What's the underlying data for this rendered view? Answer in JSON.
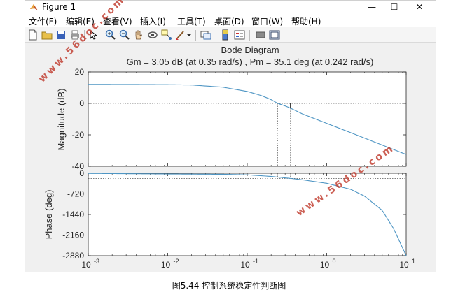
{
  "window": {
    "title": "Figure 1",
    "controls": {
      "minimize": "—",
      "maximize": "☐",
      "close": "✕"
    }
  },
  "menu": [
    "文件(F)",
    "编辑(E)",
    "查看(V)",
    "插入(I)",
    "工具(T)",
    "桌面(D)",
    "窗口(W)",
    "帮助(H)"
  ],
  "toolbar": {
    "icons": [
      "new-figure-icon",
      "open-file-icon",
      "save-icon",
      "print-icon",
      "pointer-icon",
      "zoom-in-icon",
      "zoom-out-icon",
      "pan-icon",
      "rotate-3d-icon",
      "data-cursor-icon",
      "brush-icon",
      "brush-dropdown-icon",
      "link-plot-icon",
      "colorbar-icon",
      "legend-icon",
      "hide-plot-tools-icon",
      "show-plot-tools-icon"
    ]
  },
  "chart_data": {
    "type": "line",
    "title": "Bode Diagram",
    "subtitle": "Gm = 3.05 dB (at 0.35 rad/s) ,  Pm = 35.1 deg (at 0.242 rad/s)",
    "xscale": "log",
    "xlim": [
      0.001,
      10
    ],
    "x_ticks": [
      0.001,
      0.01,
      0.1,
      1,
      10
    ],
    "x_tick_labels": [
      {
        "base": "10",
        "exp": "-3"
      },
      {
        "base": "10",
        "exp": "-2"
      },
      {
        "base": "10",
        "exp": "-1"
      },
      {
        "base": "10",
        "exp": "0"
      },
      {
        "base": "10",
        "exp": "1"
      }
    ],
    "line_color": "#4f96c4",
    "magnitude": {
      "ylabel": "Magnitude (dB)",
      "ylim": [
        -40,
        20
      ],
      "y_ticks": [
        20,
        0,
        -20,
        -40
      ],
      "y_tick_labels": [
        "20",
        "0",
        "-20",
        "-40"
      ],
      "x": [
        0.001,
        0.005,
        0.01,
        0.02,
        0.05,
        0.1,
        0.15,
        0.2,
        0.242,
        0.3,
        0.35,
        0.5,
        1,
        2,
        5,
        10
      ],
      "y": [
        12.1,
        12.0,
        11.9,
        11.7,
        10.3,
        7.6,
        5.0,
        2.4,
        0.0,
        -1.6,
        -3.05,
        -6.8,
        -12.7,
        -18.6,
        -26.5,
        -32.5
      ]
    },
    "phase": {
      "ylabel": "Phase (deg)",
      "ylim": [
        -2880,
        0
      ],
      "y_ticks": [
        0,
        -720,
        -1440,
        -2160,
        -2880
      ],
      "y_tick_labels": [
        "0",
        "-720",
        "-1440",
        "-2160",
        "-2880"
      ],
      "x": [
        0.001,
        0.01,
        0.05,
        0.1,
        0.2,
        0.35,
        0.5,
        1,
        2,
        3,
        5,
        7,
        10
      ],
      "y": [
        -6,
        -25,
        -36,
        -54,
        -110,
        -180,
        -230,
        -350,
        -560,
        -800,
        -1300,
        -1950,
        -2880
      ]
    },
    "margin_markers": {
      "gain_crossover": 0.242,
      "phase_crossover": 0.35,
      "phase_crossover_magnitude": -3.05
    },
    "grid": false
  },
  "watermarks": [
    "www.56doc.com",
    "www.56doc.com"
  ],
  "caption": "图5.44  控制系统稳定性判断图"
}
